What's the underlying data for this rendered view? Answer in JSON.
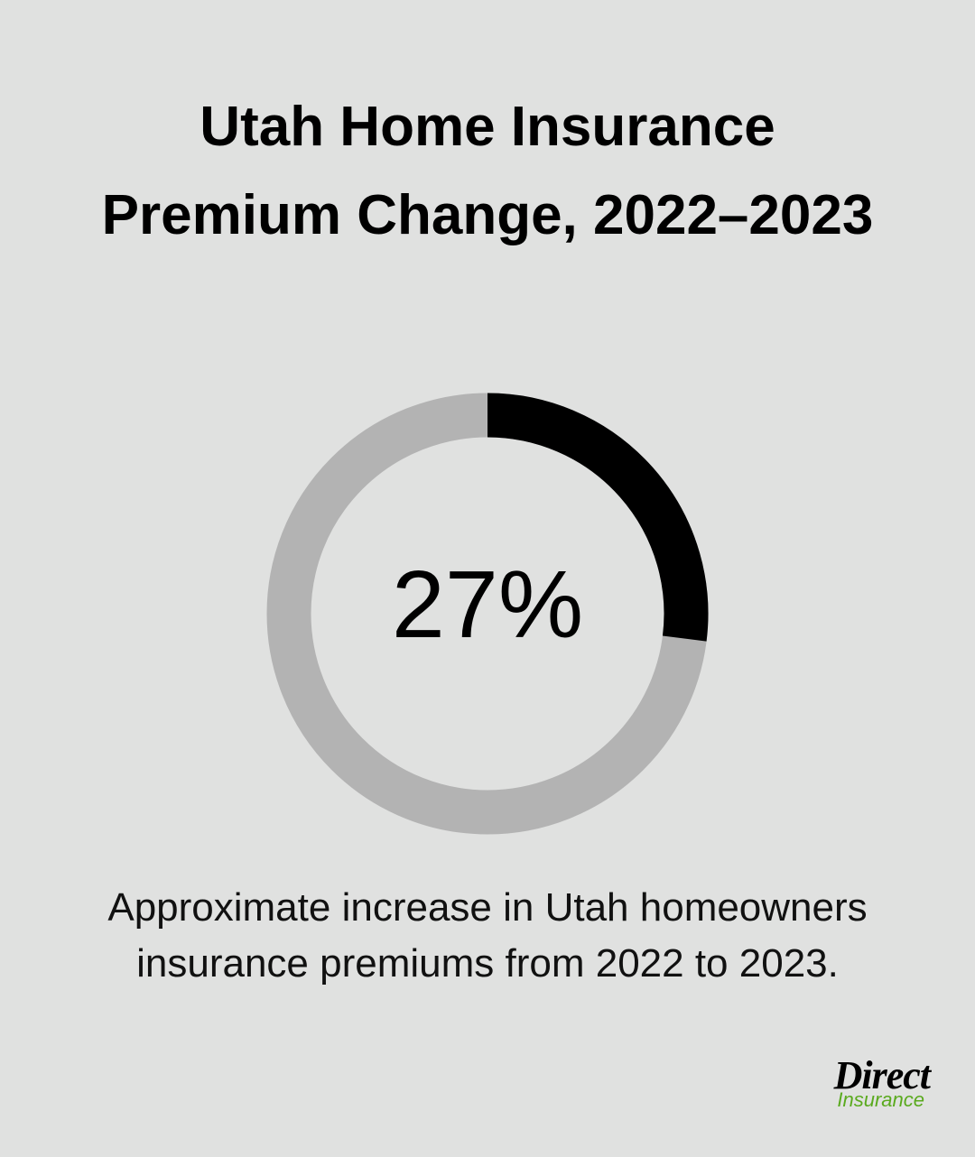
{
  "chart_data": {
    "type": "donut",
    "title": "Utah Home Insurance Premium Change, 2022–2023",
    "values": [
      27
    ],
    "value_labels": [
      "27%"
    ],
    "color": "#000000",
    "track_color": "#b3b3b3",
    "caption": "Approximate increase in Utah homeowners insurance premiums from 2022 to 2023."
  },
  "logo": {
    "name": "Direct",
    "sub": "Insurance"
  }
}
